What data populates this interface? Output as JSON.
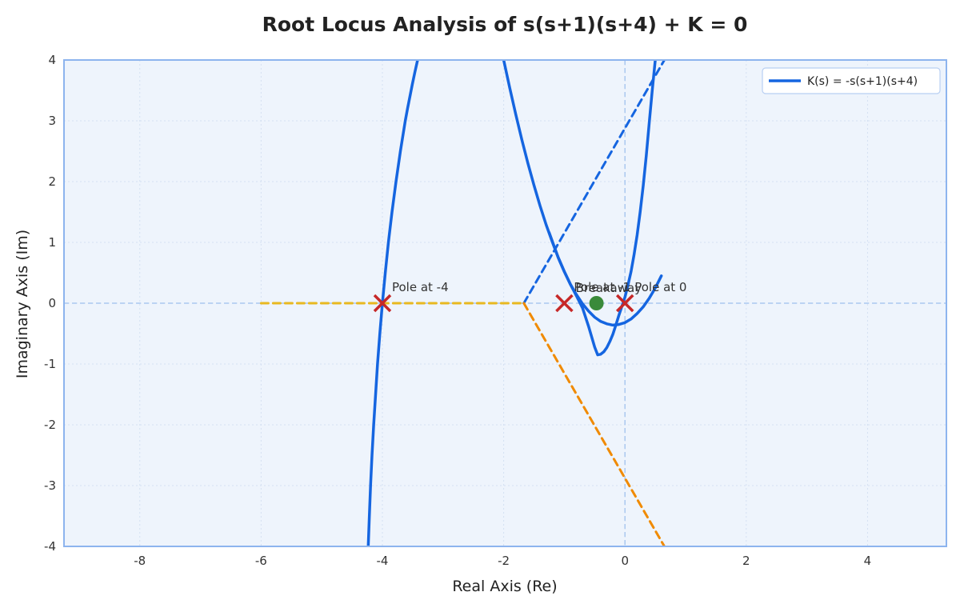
{
  "chart_data": {
    "type": "line",
    "title": "Root Locus Analysis of s(s+1)(s+4) + K = 0",
    "xlabel": "Real Axis (Re)",
    "ylabel": "Imaginary Axis (Im)",
    "xlim": [
      -9.25,
      5.3
    ],
    "ylim": [
      -4,
      4
    ],
    "x_ticks": [
      -8,
      -6,
      -4,
      -2,
      0,
      2,
      4
    ],
    "y_ticks": [
      -4,
      -3,
      -2,
      -1,
      0,
      1,
      2,
      3,
      4
    ],
    "grid": true,
    "legend_position": "top-right",
    "series": [
      {
        "name": "K(s) = -s(s+1)(s+4)",
        "style": "solid",
        "color": "#1565e0",
        "points": [
          [
            -4.234,
            -4
          ],
          [
            -4.215,
            -3.5
          ],
          [
            -4.195,
            -3
          ],
          [
            -4.171,
            -2.5
          ],
          [
            -4.144,
            -2
          ],
          [
            -4.112,
            -1.5
          ],
          [
            -4.08,
            -1
          ],
          [
            -4.042,
            -0.5
          ],
          [
            -4.0,
            0
          ],
          [
            -3.953,
            0.5
          ],
          [
            -3.901,
            1
          ],
          [
            -3.842,
            1.5
          ],
          [
            -3.776,
            2
          ],
          [
            -3.703,
            2.5
          ],
          [
            -3.622,
            3
          ],
          [
            -3.585,
            3.2
          ],
          [
            -3.546,
            3.4
          ],
          [
            -3.506,
            3.6
          ],
          [
            -3.464,
            3.8
          ],
          [
            -3.42,
            4
          ]
        ]
      },
      {
        "name": "",
        "style": "solid",
        "color": "#1565e0",
        "points": [
          [
            -2.0,
            4
          ],
          [
            -1.9,
            3.54
          ],
          [
            -1.8,
            3.1
          ],
          [
            -1.7,
            2.69
          ],
          [
            -1.6,
            2.3
          ],
          [
            -1.5,
            1.94
          ],
          [
            -1.4,
            1.6
          ],
          [
            -1.3,
            1.29
          ],
          [
            -1.2,
            1.01
          ],
          [
            -1.1,
            0.75
          ],
          [
            -1.0,
            0.52
          ],
          [
            -0.9,
            0.31
          ],
          [
            -0.8,
            0.14
          ],
          [
            -0.7,
            -0.01
          ],
          [
            -0.6,
            -0.13
          ],
          [
            -0.5,
            -0.23
          ],
          [
            -0.4,
            -0.3
          ],
          [
            -0.3,
            -0.34
          ],
          [
            -0.2,
            -0.36
          ],
          [
            -0.1,
            -0.35
          ],
          [
            0.0,
            -0.32
          ],
          [
            0.1,
            -0.26
          ],
          [
            0.2,
            -0.17
          ],
          [
            0.3,
            -0.06
          ],
          [
            0.4,
            0.08
          ],
          [
            0.5,
            0.25
          ],
          [
            0.6,
            0.45
          ]
        ]
      },
      {
        "name": "",
        "style": "solid",
        "color": "#1565e0",
        "points": [
          [
            -1.25,
            1.16
          ],
          [
            -1.1,
            0.75
          ],
          [
            -1.0,
            0.52
          ],
          [
            -0.9,
            0.31
          ],
          [
            -0.8,
            0.12
          ],
          [
            -0.7,
            -0.08
          ],
          [
            -0.6,
            -0.38
          ],
          [
            -0.5,
            -0.72
          ],
          [
            -0.45,
            -0.85
          ],
          [
            -0.4,
            -0.84
          ],
          [
            -0.35,
            -0.8
          ],
          [
            -0.3,
            -0.73
          ],
          [
            -0.25,
            -0.63
          ],
          [
            -0.2,
            -0.51
          ],
          [
            -0.15,
            -0.36
          ],
          [
            -0.1,
            -0.2
          ],
          [
            -0.05,
            -0.05
          ],
          [
            0.0,
            0.1
          ],
          [
            0.05,
            0.3
          ],
          [
            0.1,
            0.52
          ],
          [
            0.15,
            0.8
          ],
          [
            0.2,
            1.12
          ],
          [
            0.25,
            1.5
          ],
          [
            0.3,
            1.93
          ],
          [
            0.35,
            2.42
          ],
          [
            0.4,
            2.96
          ],
          [
            0.45,
            3.5
          ],
          [
            0.5,
            4
          ]
        ]
      },
      {
        "name": "",
        "style": "dashed",
        "color": "#1565e0",
        "points": [
          [
            -1.667,
            0
          ],
          [
            0.65,
            4
          ]
        ]
      },
      {
        "name": "",
        "style": "dashed",
        "color": "#f08a00",
        "points": [
          [
            -1.667,
            0
          ],
          [
            0.65,
            -4
          ]
        ]
      },
      {
        "name": "",
        "style": "dashed",
        "color": "#e8b820",
        "points": [
          [
            -6.0,
            0
          ],
          [
            -1.667,
            0
          ]
        ]
      }
    ],
    "poles": [
      {
        "x": -4,
        "y": 0,
        "label": "Pole at -4"
      },
      {
        "x": -1,
        "y": 0,
        "label": "Pole at -1"
      },
      {
        "x": 0,
        "y": 0,
        "label": "Pole at 0"
      }
    ],
    "breakaway": {
      "x": -0.47,
      "y": 0,
      "label": "Breakaway"
    },
    "colors": {
      "locus": "#1565e0",
      "asymptote_lower": "#f08a00",
      "real_axis_segment": "#e8b820",
      "pole_marker": "#c62828",
      "breakaway_marker": "#3a8a3a",
      "plot_background": "#eef4fc",
      "plot_border": "#8db4ee",
      "reference_line": "#aac8f0"
    }
  }
}
